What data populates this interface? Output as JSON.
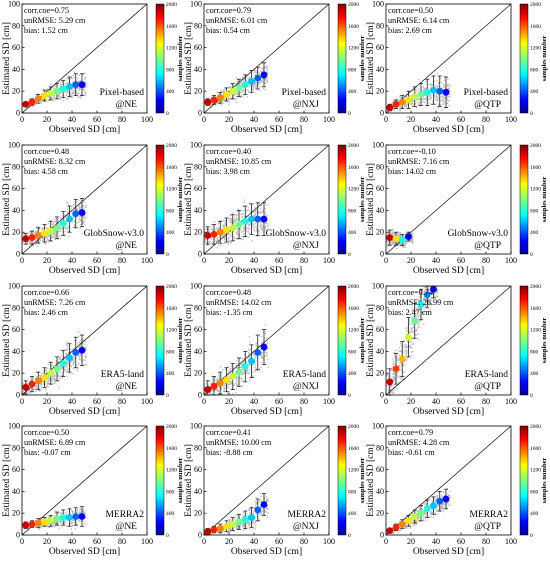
{
  "figure": {
    "x_axis_label": "Observed SD [cm]",
    "y_axis_label": "Estimated SD [cm]",
    "colorbar_label": "samples number",
    "colorbar_ticks": [
      "0",
      "400",
      "800",
      "1200",
      "1600",
      "2000"
    ],
    "axis_ticks": [
      "0",
      "20",
      "40",
      "60",
      "80",
      "100"
    ]
  },
  "chart_data": [
    {
      "type": "scatter",
      "product": "Pixel-based",
      "region": "@NE",
      "stats": [
        "corr.coe=0.75",
        "unRMSE: 5.29 cm",
        "bias: 1.52 cm"
      ],
      "xlim": [
        0,
        100
      ],
      "ylim": [
        0,
        100
      ],
      "points": [
        {
          "x": 3,
          "y": 8,
          "e": 2
        },
        {
          "x": 8,
          "y": 10,
          "e": 3
        },
        {
          "x": 13,
          "y": 13,
          "e": 4
        },
        {
          "x": 18,
          "y": 16,
          "e": 5
        },
        {
          "x": 23,
          "y": 18,
          "e": 6
        },
        {
          "x": 28,
          "y": 20,
          "e": 7
        },
        {
          "x": 33,
          "y": 22,
          "e": 8
        },
        {
          "x": 38,
          "y": 24,
          "e": 9
        },
        {
          "x": 43,
          "y": 26,
          "e": 10
        },
        {
          "x": 48,
          "y": 26,
          "e": 10
        }
      ]
    },
    {
      "type": "scatter",
      "product": "Pixel-based",
      "region": "@NXJ",
      "stats": [
        "corr.coe=0.79",
        "unRMSE: 6.01 cm",
        "bias: 0.54 cm"
      ],
      "xlim": [
        0,
        100
      ],
      "ylim": [
        0,
        100
      ],
      "points": [
        {
          "x": 3,
          "y": 10,
          "e": 3
        },
        {
          "x": 8,
          "y": 12,
          "e": 4
        },
        {
          "x": 13,
          "y": 14,
          "e": 5
        },
        {
          "x": 18,
          "y": 17,
          "e": 6
        },
        {
          "x": 23,
          "y": 20,
          "e": 7
        },
        {
          "x": 28,
          "y": 23,
          "e": 8
        },
        {
          "x": 33,
          "y": 26,
          "e": 9
        },
        {
          "x": 38,
          "y": 29,
          "e": 10
        },
        {
          "x": 43,
          "y": 32,
          "e": 10
        },
        {
          "x": 48,
          "y": 35,
          "e": 11
        }
      ]
    },
    {
      "type": "scatter",
      "product": "Pixel-based",
      "region": "@QTP",
      "stats": [
        "corr.coe=0.50",
        "unRMSE: 6.14 cm",
        "bias: 2.69 cm"
      ],
      "xlim": [
        0,
        100
      ],
      "ylim": [
        0,
        100
      ],
      "points": [
        {
          "x": 3,
          "y": 5,
          "e": 3
        },
        {
          "x": 8,
          "y": 8,
          "e": 4
        },
        {
          "x": 13,
          "y": 10,
          "e": 6
        },
        {
          "x": 18,
          "y": 12,
          "e": 8
        },
        {
          "x": 23,
          "y": 15,
          "e": 9
        },
        {
          "x": 28,
          "y": 17,
          "e": 10
        },
        {
          "x": 33,
          "y": 19,
          "e": 12
        },
        {
          "x": 38,
          "y": 21,
          "e": 13
        },
        {
          "x": 43,
          "y": 20,
          "e": 14
        },
        {
          "x": 48,
          "y": 19,
          "e": 14
        }
      ]
    },
    {
      "type": "scatter",
      "product": "GlobSnow-v3.0",
      "region": "@NE",
      "stats": [
        "corr.coe=0.48",
        "unRMSE: 8.32 cm",
        "bias: 4.58 cm"
      ],
      "xlim": [
        0,
        100
      ],
      "ylim": [
        0,
        100
      ],
      "points": [
        {
          "x": 3,
          "y": 14,
          "e": 5
        },
        {
          "x": 8,
          "y": 15,
          "e": 6
        },
        {
          "x": 13,
          "y": 17,
          "e": 7
        },
        {
          "x": 18,
          "y": 19,
          "e": 8
        },
        {
          "x": 23,
          "y": 21,
          "e": 9
        },
        {
          "x": 28,
          "y": 24,
          "e": 10
        },
        {
          "x": 33,
          "y": 28,
          "e": 11
        },
        {
          "x": 38,
          "y": 32,
          "e": 12
        },
        {
          "x": 43,
          "y": 37,
          "e": 13
        },
        {
          "x": 48,
          "y": 38,
          "e": 13
        }
      ]
    },
    {
      "type": "scatter",
      "product": "GlobSnow-v3.0",
      "region": "@NXJ",
      "stats": [
        "corr.coe=0.40",
        "unRMSE: 10.85 cm",
        "bias: 3.98 cm"
      ],
      "xlim": [
        0,
        100
      ],
      "ylim": [
        0,
        100
      ],
      "points": [
        {
          "x": 3,
          "y": 17,
          "e": 8
        },
        {
          "x": 8,
          "y": 18,
          "e": 9
        },
        {
          "x": 13,
          "y": 20,
          "e": 10
        },
        {
          "x": 18,
          "y": 22,
          "e": 11
        },
        {
          "x": 23,
          "y": 24,
          "e": 12
        },
        {
          "x": 28,
          "y": 27,
          "e": 13
        },
        {
          "x": 33,
          "y": 30,
          "e": 14
        },
        {
          "x": 38,
          "y": 32,
          "e": 14
        },
        {
          "x": 43,
          "y": 32,
          "e": 15
        },
        {
          "x": 48,
          "y": 32,
          "e": 15
        }
      ]
    },
    {
      "type": "scatter",
      "product": "GlobSnow-v3.0",
      "region": "@QTP",
      "stats": [
        "corr.coe=-0.10",
        "unRMSE: 7.16 cm",
        "bias: 14.02 cm"
      ],
      "xlim": [
        0,
        100
      ],
      "ylim": [
        0,
        100
      ],
      "points": [
        {
          "x": 3,
          "y": 15,
          "e": 7
        },
        {
          "x": 8,
          "y": 14,
          "e": 6
        },
        {
          "x": 13,
          "y": 13,
          "e": 5
        },
        {
          "x": 18,
          "y": 16,
          "e": 4
        }
      ]
    },
    {
      "type": "scatter",
      "product": "ERA5-land",
      "region": "@NE",
      "stats": [
        "corr.coe=0.66",
        "unRMSE: 7.26 cm",
        "bias: 2.46 cm"
      ],
      "xlim": [
        0,
        100
      ],
      "ylim": [
        0,
        100
      ],
      "points": [
        {
          "x": 3,
          "y": 7,
          "e": 6
        },
        {
          "x": 8,
          "y": 10,
          "e": 7
        },
        {
          "x": 13,
          "y": 13,
          "e": 8
        },
        {
          "x": 18,
          "y": 16,
          "e": 9
        },
        {
          "x": 23,
          "y": 20,
          "e": 10
        },
        {
          "x": 28,
          "y": 24,
          "e": 11
        },
        {
          "x": 33,
          "y": 29,
          "e": 12
        },
        {
          "x": 38,
          "y": 34,
          "e": 13
        },
        {
          "x": 43,
          "y": 39,
          "e": 14
        },
        {
          "x": 48,
          "y": 41,
          "e": 14
        }
      ]
    },
    {
      "type": "scatter",
      "product": "ERA5-land",
      "region": "@NXJ",
      "stats": [
        "corr.coe=0.48",
        "unRMSE: 14.02 cm",
        "bias: -1.35 cm"
      ],
      "xlim": [
        0,
        100
      ],
      "ylim": [
        0,
        100
      ],
      "points": [
        {
          "x": 3,
          "y": 5,
          "e": 8
        },
        {
          "x": 8,
          "y": 8,
          "e": 9
        },
        {
          "x": 13,
          "y": 11,
          "e": 10
        },
        {
          "x": 18,
          "y": 14,
          "e": 11
        },
        {
          "x": 23,
          "y": 17,
          "e": 12
        },
        {
          "x": 28,
          "y": 21,
          "e": 13
        },
        {
          "x": 33,
          "y": 26,
          "e": 14
        },
        {
          "x": 38,
          "y": 31,
          "e": 15
        },
        {
          "x": 43,
          "y": 39,
          "e": 16
        },
        {
          "x": 48,
          "y": 44,
          "e": 16
        }
      ]
    },
    {
      "type": "scatter",
      "product": "ERA5-land",
      "region": "@QTP",
      "stats": [
        "corr.coe=0.74",
        "unRMSE: 26.99 cm",
        "bias: 2.47 cm"
      ],
      "xlim": [
        0,
        100
      ],
      "ylim": [
        0,
        100
      ],
      "points": [
        {
          "x": 3,
          "y": 12,
          "e": 12
        },
        {
          "x": 8,
          "y": 24,
          "e": 14
        },
        {
          "x": 13,
          "y": 33,
          "e": 16
        },
        {
          "x": 18,
          "y": 53,
          "e": 18
        },
        {
          "x": 23,
          "y": 68,
          "e": 16
        },
        {
          "x": 28,
          "y": 83,
          "e": 14
        },
        {
          "x": 33,
          "y": 92,
          "e": 12
        },
        {
          "x": 38,
          "y": 97,
          "e": 8
        }
      ]
    },
    {
      "type": "scatter",
      "product": "MERRA2",
      "region": "@NE",
      "stats": [
        "corr.coe=0.50",
        "unRMSE: 6.89 cm",
        "bias: -0.07 cm"
      ],
      "xlim": [
        0,
        100
      ],
      "ylim": [
        0,
        100
      ],
      "points": [
        {
          "x": 3,
          "y": 9,
          "e": 3
        },
        {
          "x": 8,
          "y": 10,
          "e": 3
        },
        {
          "x": 13,
          "y": 11,
          "e": 4
        },
        {
          "x": 18,
          "y": 12,
          "e": 4
        },
        {
          "x": 23,
          "y": 13,
          "e": 5
        },
        {
          "x": 28,
          "y": 15,
          "e": 6
        },
        {
          "x": 33,
          "y": 16,
          "e": 7
        },
        {
          "x": 38,
          "y": 16,
          "e": 8
        },
        {
          "x": 43,
          "y": 17,
          "e": 8
        },
        {
          "x": 48,
          "y": 17,
          "e": 9
        }
      ]
    },
    {
      "type": "scatter",
      "product": "MERRA2",
      "region": "@NXJ",
      "stats": [
        "corr.coe=0.41",
        "unRMSE: 10.00 cm",
        "bias: -8.88 cm"
      ],
      "xlim": [
        0,
        100
      ],
      "ylim": [
        0,
        100
      ],
      "points": [
        {
          "x": 3,
          "y": 3,
          "e": 3
        },
        {
          "x": 8,
          "y": 5,
          "e": 3
        },
        {
          "x": 13,
          "y": 6,
          "e": 4
        },
        {
          "x": 18,
          "y": 8,
          "e": 5
        },
        {
          "x": 23,
          "y": 10,
          "e": 6
        },
        {
          "x": 28,
          "y": 12,
          "e": 7
        },
        {
          "x": 33,
          "y": 14,
          "e": 8
        },
        {
          "x": 38,
          "y": 16,
          "e": 9
        },
        {
          "x": 43,
          "y": 23,
          "e": 10
        },
        {
          "x": 48,
          "y": 28,
          "e": 10
        }
      ]
    },
    {
      "type": "scatter",
      "product": "MERRA2",
      "region": "@QTP",
      "stats": [
        "corr.coe=0.79",
        "unRMSE: 4.28 cm",
        "bias: -0.61 cm"
      ],
      "xlim": [
        0,
        100
      ],
      "ylim": [
        0,
        100
      ],
      "points": [
        {
          "x": 3,
          "y": 4,
          "e": 2
        },
        {
          "x": 8,
          "y": 7,
          "e": 3
        },
        {
          "x": 13,
          "y": 10,
          "e": 4
        },
        {
          "x": 18,
          "y": 13,
          "e": 5
        },
        {
          "x": 23,
          "y": 17,
          "e": 6
        },
        {
          "x": 28,
          "y": 20,
          "e": 7
        },
        {
          "x": 33,
          "y": 24,
          "e": 8
        },
        {
          "x": 38,
          "y": 27,
          "e": 8
        },
        {
          "x": 43,
          "y": 31,
          "e": 9
        },
        {
          "x": 48,
          "y": 33,
          "e": 9
        }
      ]
    }
  ]
}
